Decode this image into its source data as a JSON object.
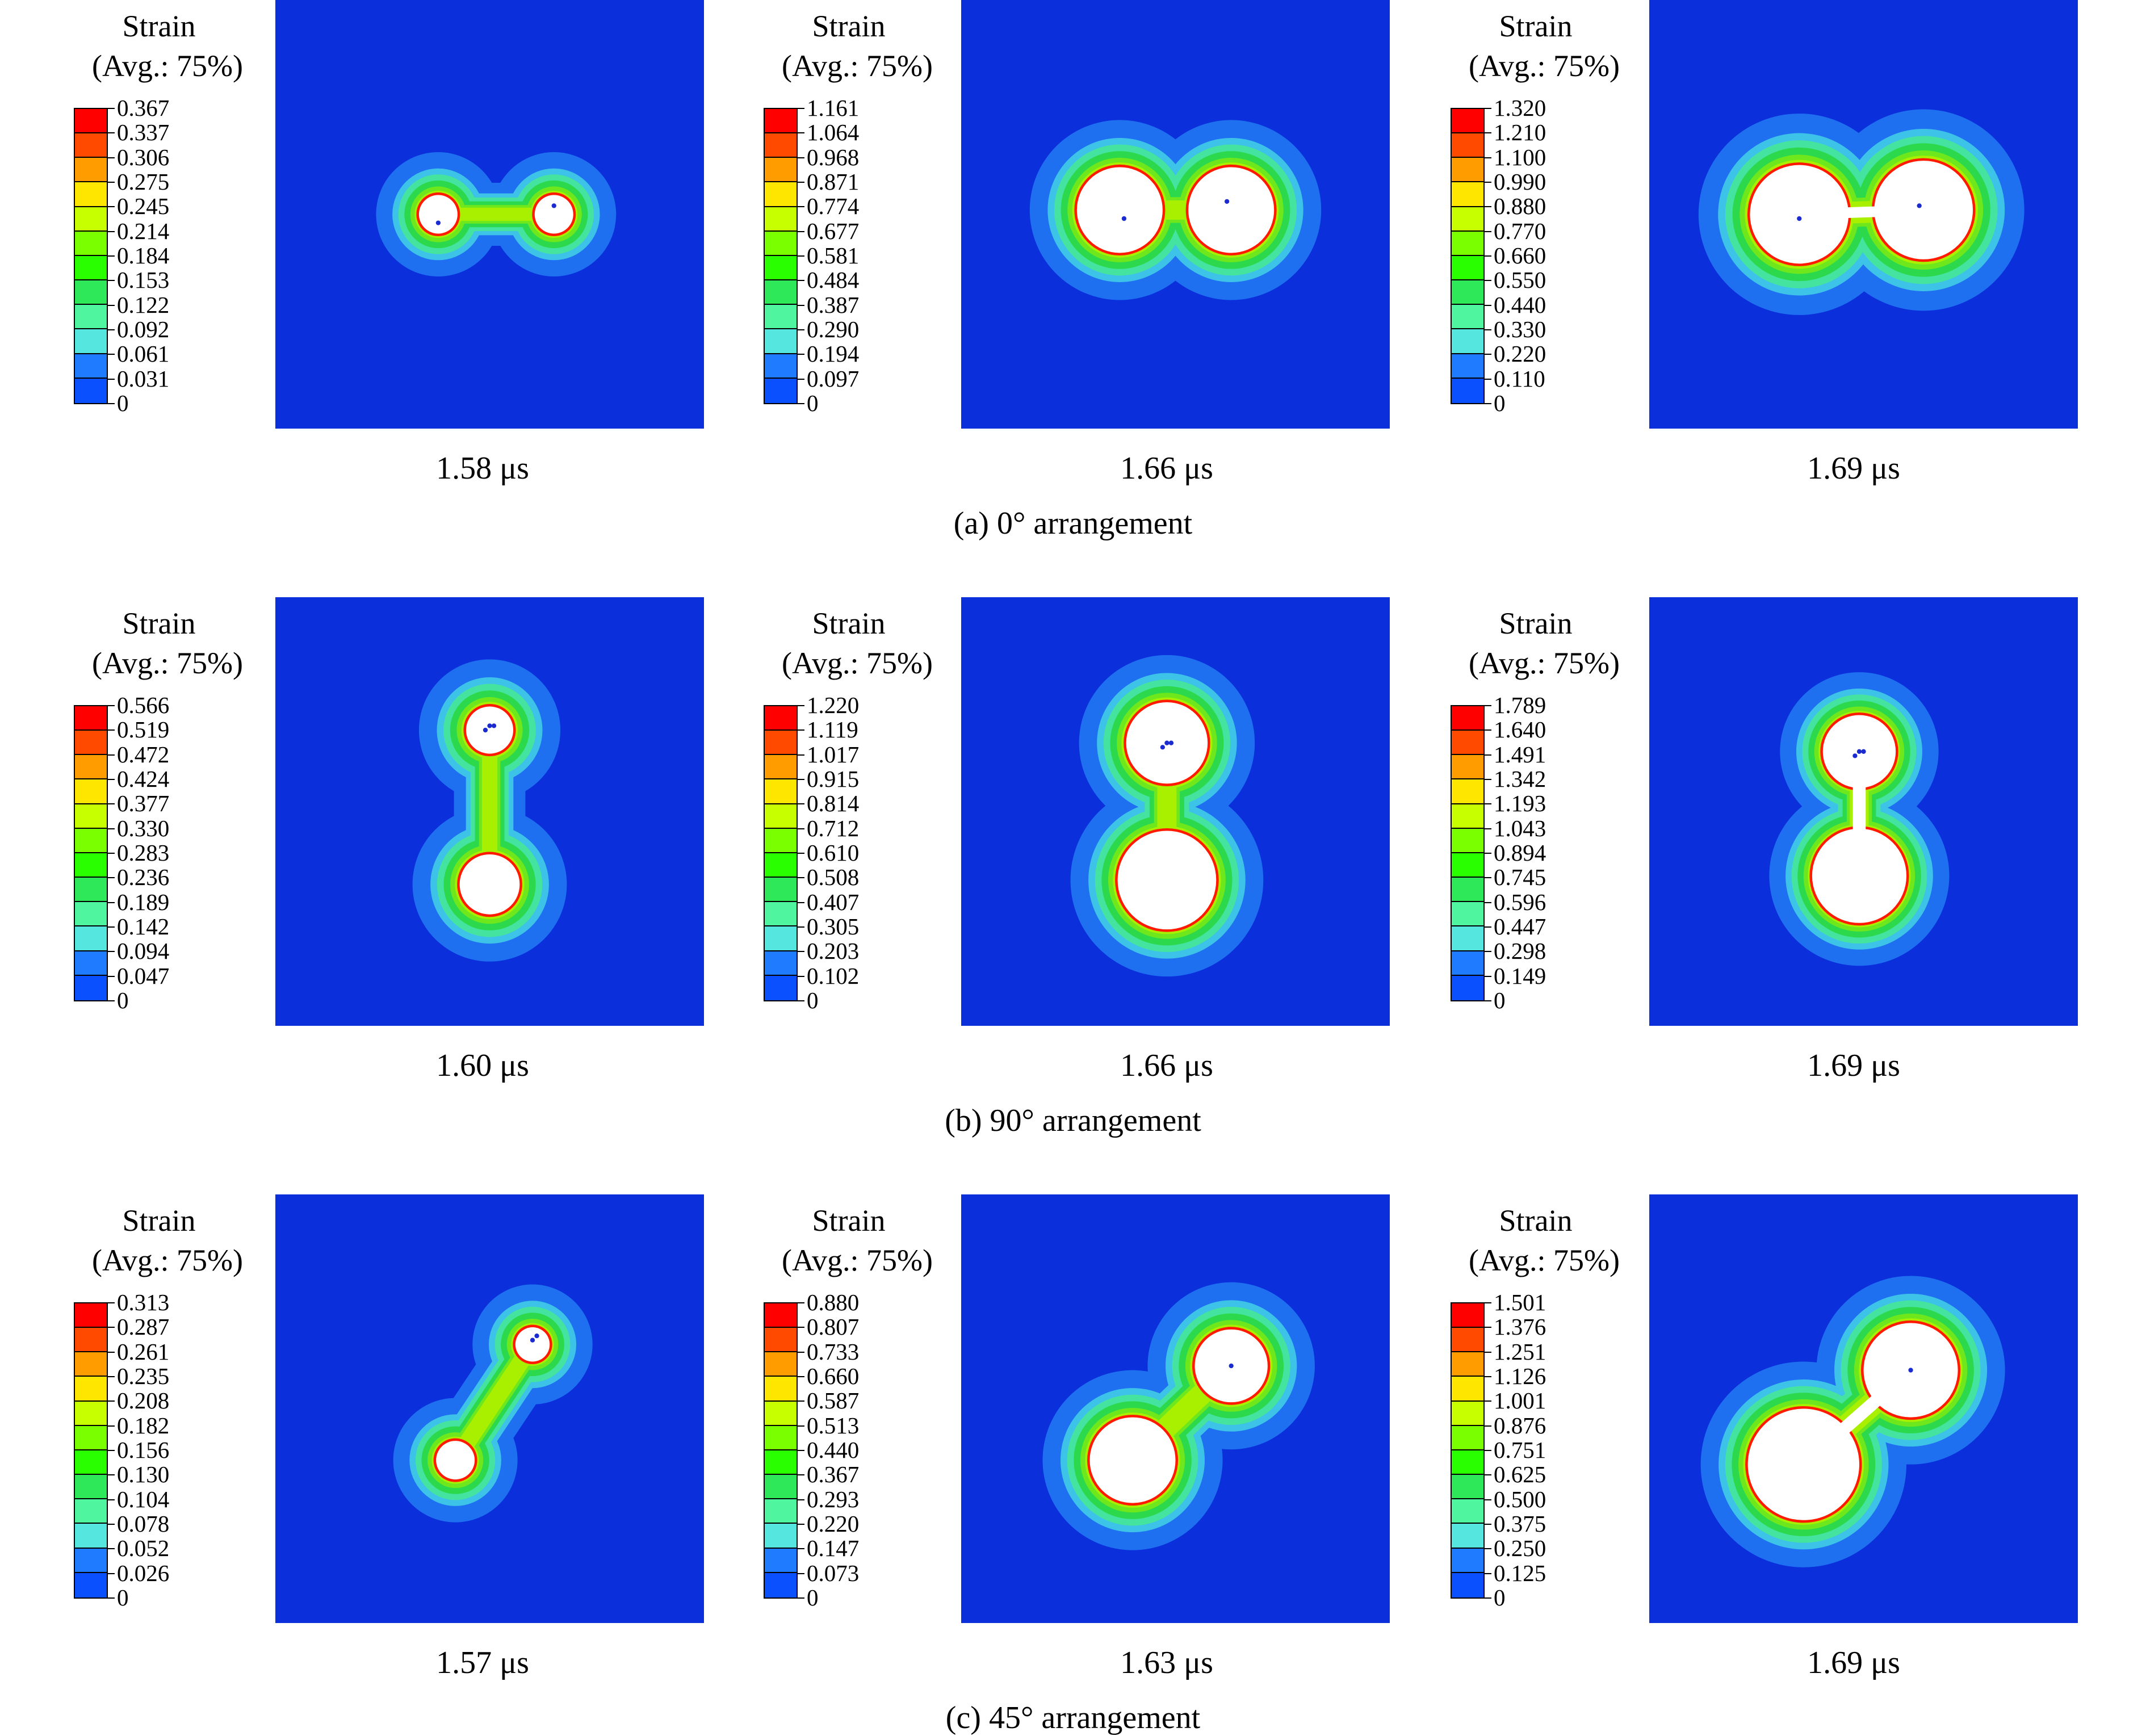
{
  "legend_colors": [
    "#ff0000",
    "#ff4a00",
    "#ff9c00",
    "#ffe600",
    "#c8ff00",
    "#7aff00",
    "#2aff00",
    "#2ee85a",
    "#50f5a0",
    "#55e6e0",
    "#1f7bff",
    "#0a50ff"
  ],
  "background_color": "#0a2fdb",
  "rows": [
    {
      "caption": "(a) 0° arrangement",
      "panels": [
        {
          "title": "Strain",
          "subtitle": "(Avg.: 75%)",
          "levels": [
            "0.367",
            "0.337",
            "0.306",
            "0.275",
            "0.245",
            "0.214",
            "0.184",
            "0.153",
            "0.122",
            "0.092",
            "0.061",
            "0.031",
            "0"
          ],
          "time": "1.58 μs",
          "shape": "horizontal-early"
        },
        {
          "title": "Strain",
          "subtitle": "(Avg.: 75%)",
          "levels": [
            "1.161",
            "1.064",
            "0.968",
            "0.871",
            "0.774",
            "0.677",
            "0.581",
            "0.484",
            "0.387",
            "0.290",
            "0.194",
            "0.097",
            "0"
          ],
          "time": "1.66 μs",
          "shape": "horizontal-mid"
        },
        {
          "title": "Strain",
          "subtitle": "(Avg.: 75%)",
          "levels": [
            "1.320",
            "1.210",
            "1.100",
            "0.990",
            "0.880",
            "0.770",
            "0.660",
            "0.550",
            "0.440",
            "0.330",
            "0.220",
            "0.110",
            "0"
          ],
          "time": "1.69 μs",
          "shape": "horizontal-late"
        }
      ]
    },
    {
      "caption": "(b) 90° arrangement",
      "panels": [
        {
          "title": "Strain",
          "subtitle": "(Avg.: 75%)",
          "levels": [
            "0.566",
            "0.519",
            "0.472",
            "0.424",
            "0.377",
            "0.330",
            "0.283",
            "0.236",
            "0.189",
            "0.142",
            "0.094",
            "0.047",
            "0"
          ],
          "time": "1.60 μs",
          "shape": "vertical-early"
        },
        {
          "title": "Strain",
          "subtitle": "(Avg.: 75%)",
          "levels": [
            "1.220",
            "1.119",
            "1.017",
            "0.915",
            "0.814",
            "0.712",
            "0.610",
            "0.508",
            "0.407",
            "0.305",
            "0.203",
            "0.102",
            "0"
          ],
          "time": "1.66 μs",
          "shape": "vertical-mid"
        },
        {
          "title": "Strain",
          "subtitle": "(Avg.: 75%)",
          "levels": [
            "1.789",
            "1.640",
            "1.491",
            "1.342",
            "1.193",
            "1.043",
            "0.894",
            "0.745",
            "0.596",
            "0.447",
            "0.298",
            "0.149",
            "0"
          ],
          "time": "1.69 μs",
          "shape": "vertical-late"
        }
      ]
    },
    {
      "caption": "(c) 45° arrangement",
      "panels": [
        {
          "title": "Strain",
          "subtitle": "(Avg.: 75%)",
          "levels": [
            "0.313",
            "0.287",
            "0.261",
            "0.235",
            "0.208",
            "0.182",
            "0.156",
            "0.130",
            "0.104",
            "0.078",
            "0.052",
            "0.026",
            "0"
          ],
          "time": "1.57 μs",
          "shape": "diagonal-early"
        },
        {
          "title": "Strain",
          "subtitle": "(Avg.: 75%)",
          "levels": [
            "0.880",
            "0.807",
            "0.733",
            "0.660",
            "0.587",
            "0.513",
            "0.440",
            "0.367",
            "0.293",
            "0.220",
            "0.147",
            "0.073",
            "0"
          ],
          "time": "1.63 μs",
          "shape": "diagonal-mid"
        },
        {
          "title": "Strain",
          "subtitle": "(Avg.: 75%)",
          "levels": [
            "1.501",
            "1.376",
            "1.251",
            "1.126",
            "1.001",
            "0.876",
            "0.751",
            "0.625",
            "0.500",
            "0.375",
            "0.250",
            "0.125",
            "0"
          ],
          "time": "1.69 μs",
          "shape": "diagonal-late"
        }
      ]
    }
  ]
}
